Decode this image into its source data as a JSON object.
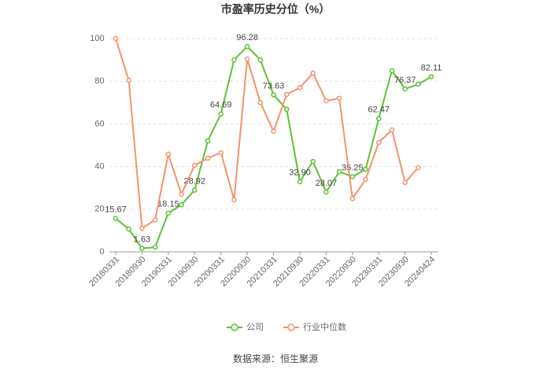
{
  "chart_data": {
    "type": "line",
    "title": "市盈率历史分位（%）",
    "source": "数据来源：恒生聚源",
    "categories": [
      "20180331",
      null,
      "20180930",
      null,
      "20190331",
      null,
      "20190930",
      null,
      "20200331",
      null,
      "20200930",
      null,
      "20210331",
      null,
      "20210930",
      null,
      "20220331",
      null,
      "20220930",
      null,
      "20230331",
      null,
      "20230930",
      null,
      "20240424"
    ],
    "series": [
      {
        "name": "公司",
        "color": "#5cc334",
        "values": [
          15.67,
          10.7,
          1.63,
          2.2,
          18.15,
          22.1,
          28.92,
          52,
          64.69,
          90,
          96.28,
          90,
          73.63,
          66.8,
          32.9,
          42.4,
          28.07,
          37.6,
          35.25,
          38.7,
          62.47,
          84.9,
          76.37,
          78.6,
          82.11
        ],
        "value_labels": [
          "15.67",
          null,
          "1.63",
          null,
          "18.15",
          null,
          "28.92",
          null,
          "64.69",
          null,
          "96.28",
          null,
          "73.63",
          null,
          "32.90",
          null,
          "28.07",
          null,
          "35.25",
          null,
          "62.47",
          null,
          "76.37",
          null,
          "82.11"
        ]
      },
      {
        "name": "行业中位数",
        "color": "#f5926a",
        "values": [
          100,
          80.4,
          11,
          15,
          45.8,
          27,
          40.6,
          43.9,
          46.5,
          24.4,
          90.4,
          70,
          56.5,
          73.8,
          77,
          83.8,
          70.8,
          72,
          25,
          34,
          51.3,
          57.2,
          32.5,
          39.5,
          null
        ]
      }
    ],
    "ylim": [
      0,
      100
    ],
    "yticks": [
      0,
      20,
      40,
      60,
      80,
      100
    ],
    "grid": true,
    "legend": "bottom"
  }
}
